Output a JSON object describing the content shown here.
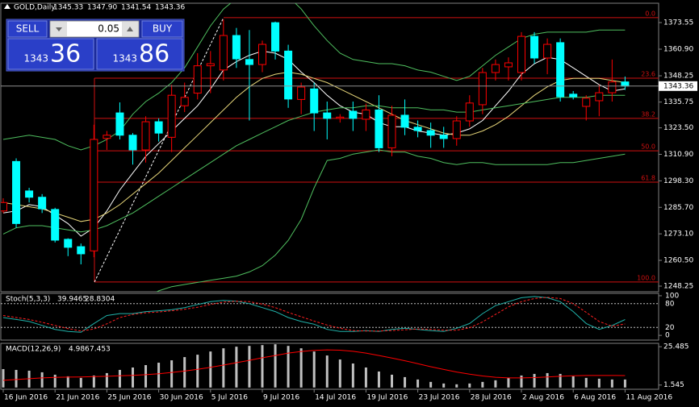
{
  "chart_data": [
    {
      "type": "candlestick",
      "title": "GOLD,Daily",
      "last_labels": [
        "1345.33",
        "1347.90",
        "1341.54",
        "1343.36"
      ],
      "categories": [
        "16 Jun 2016",
        null,
        null,
        null,
        "21 Jun 2016",
        null,
        null,
        null,
        "25 Jun 2016",
        null,
        null,
        null,
        "30 Jun 2016",
        null,
        null,
        null,
        "5 Jul 2016",
        null,
        null,
        null,
        "9 Jul 2016",
        null,
        null,
        null,
        "14 Jul 2016",
        null,
        null,
        null,
        "19 Jul 2016",
        null,
        null,
        null,
        "23 Jul 2016",
        null,
        null,
        null,
        "28 Jul 2016",
        null,
        null,
        null,
        "2 Aug 2016",
        null,
        null,
        null,
        "6 Aug 2016",
        null,
        null,
        null,
        "11 Aug 2016"
      ],
      "open": [
        1284,
        1307.5,
        1293.5,
        1290.5,
        1284.7,
        1270.5,
        1267,
        1265,
        1318.5,
        1330.6,
        1320,
        1313,
        1326.4,
        1319,
        1334,
        1340,
        1353,
        1351,
        1367.4,
        1356,
        1353.6,
        1373.5,
        1360,
        1337,
        1342,
        1330.6,
        1328,
        1331.4,
        1327.6,
        1332,
        1314,
        1329.5,
        1323.8,
        1322.2,
        1320,
        1318.4,
        1326.8,
        1334.5,
        1349.8,
        1352.5,
        1349.8,
        1367,
        1356.7,
        1364,
        1339.5,
        1333.7,
        1336.4,
        1340.2,
        1345.33
      ],
      "high": [
        1290,
        1309,
        1295,
        1292,
        1285.5,
        1271,
        1268.5,
        1325,
        1322,
        1335.6,
        1321,
        1329,
        1328,
        1344,
        1345,
        1359,
        1360,
        1375,
        1371,
        1370,
        1365,
        1374,
        1363,
        1345,
        1345,
        1336,
        1330,
        1336,
        1335,
        1339,
        1334,
        1337,
        1327,
        1326,
        1324,
        1329,
        1339,
        1352,
        1356,
        1357,
        1369,
        1369,
        1366,
        1366,
        1341,
        1339,
        1344,
        1356,
        1347.9
      ],
      "low": [
        1283,
        1276,
        1288,
        1283,
        1269,
        1262.5,
        1258.6,
        1262,
        1313,
        1318,
        1306,
        1307,
        1317,
        1312,
        1331,
        1337,
        1340,
        1346,
        1352,
        1327,
        1350,
        1356,
        1333,
        1330,
        1322,
        1318,
        1326,
        1322,
        1322,
        1312,
        1310,
        1320,
        1319,
        1314,
        1314,
        1315,
        1324,
        1330,
        1346,
        1346,
        1346,
        1354,
        1349,
        1336,
        1337,
        1327,
        1329,
        1336,
        1341.54
      ],
      "close": [
        1288,
        1278,
        1290.5,
        1285,
        1270.1,
        1266.7,
        1263.6,
        1318,
        1320,
        1320,
        1313,
        1326.4,
        1321,
        1339,
        1338,
        1353,
        1354,
        1367.4,
        1356.3,
        1353.6,
        1363.2,
        1360,
        1337.2,
        1342.9,
        1330.6,
        1328,
        1328.6,
        1328,
        1332,
        1314,
        1329.5,
        1323.8,
        1322.2,
        1320,
        1318.4,
        1326.8,
        1335.3,
        1349.8,
        1353.6,
        1354.4,
        1367,
        1356.7,
        1363.2,
        1338.3,
        1338.3,
        1337.6,
        1340.2,
        1345.33,
        1343.36
      ],
      "up_color": "#ff0000",
      "down_color": "#00ffff",
      "overlays": [
        {
          "color": "#ffffff",
          "values": [
            1283,
            1284,
            1287,
            1286,
            1282,
            1278,
            1272,
            1276,
            1284,
            1294,
            1302,
            1310,
            1316,
            1322,
            1328,
            1334,
            1342,
            1351,
            1355,
            1358,
            1360,
            1359,
            1356,
            1350,
            1345,
            1339,
            1334,
            1331,
            1330,
            1326,
            1324,
            1324,
            1322,
            1321,
            1320,
            1321,
            1323,
            1327,
            1334,
            1341,
            1349,
            1354,
            1357,
            1356,
            1352,
            1348,
            1344,
            1341,
            1342
          ]
        },
        {
          "color": "#e8d77a",
          "values": [
            1288,
            1287,
            1286,
            1285,
            1283,
            1281,
            1279,
            1280,
            1283,
            1287,
            1292,
            1297,
            1302,
            1308,
            1314,
            1320,
            1326,
            1332,
            1338,
            1343,
            1347,
            1349,
            1350,
            1349,
            1347,
            1345,
            1342,
            1339,
            1336,
            1333,
            1330,
            1327,
            1325,
            1323,
            1321,
            1320,
            1320,
            1322,
            1325,
            1329,
            1334,
            1339,
            1343,
            1346,
            1347,
            1347,
            1347,
            1346,
            1345
          ]
        },
        {
          "color": "#4fbf5f",
          "values": [
            1318,
            1319,
            1320,
            1319,
            1318,
            1315,
            1313,
            1315,
            1318,
            1322,
            1330,
            1336,
            1340,
            1345,
            1352,
            1362,
            1372,
            1380,
            1385,
            1388,
            1389,
            1389,
            1386,
            1380,
            1372,
            1365,
            1359,
            1356,
            1355,
            1354,
            1354,
            1353,
            1351,
            1350,
            1348,
            1346,
            1348,
            1353,
            1358,
            1362,
            1366,
            1368,
            1369,
            1369,
            1369,
            1369,
            1370,
            1370,
            1370
          ]
        },
        {
          "color": "#4fbf5f",
          "values": [
            1273,
            1276,
            1277,
            1277,
            1276,
            1275,
            1274,
            1275,
            1277,
            1280,
            1283,
            1287,
            1291,
            1295,
            1299,
            1303,
            1307,
            1311,
            1315,
            1318,
            1321,
            1324,
            1327,
            1329,
            1331,
            1332,
            1333,
            1333,
            1334,
            1334,
            1333,
            1333,
            1333,
            1332,
            1332,
            1331,
            1331,
            1332,
            1333,
            1334,
            1335,
            1336,
            1337,
            1338,
            1338,
            1338,
            1339,
            1339,
            1339
          ]
        },
        {
          "color": "#4fbf5f",
          "values": [
            1240,
            1240,
            1238,
            1236,
            1234,
            1232,
            1232,
            1233,
            1234,
            1237,
            1240,
            1243,
            1246,
            1248,
            1249,
            1250,
            1251,
            1252,
            1253,
            1255,
            1258,
            1263,
            1270,
            1280,
            1295,
            1308,
            1309,
            1311,
            1312,
            1313,
            1312,
            1312,
            1310,
            1309,
            1307,
            1306,
            1307,
            1307,
            1306,
            1306,
            1306,
            1306,
            1306,
            1307,
            1307,
            1308,
            1309,
            1310,
            1311
          ]
        }
      ],
      "fib": {
        "labels": [
          "0.0",
          "23.6",
          "38.2",
          "50.0",
          "61.8",
          "100.0"
        ],
        "values": [
          1375.9,
          1347.1,
          1328,
          1312.6,
          1297.7,
          1250.2
        ],
        "color": "#d01010"
      },
      "ylim": [
        1245.57,
        1382.75
      ],
      "yticks": [
        {
          "value": 1373.55,
          "label": "1373.55"
        },
        {
          "value": 1360.9,
          "label": "1360.90"
        },
        {
          "value": 1348.25,
          "label": "1348.25"
        },
        {
          "value": 1335.75,
          "label": "1335.75"
        },
        {
          "value": 1323.5,
          "label": "1323.50"
        },
        {
          "value": 1310.9,
          "label": "1310.90"
        },
        {
          "value": 1298.3,
          "label": "1298.30"
        },
        {
          "value": 1285.7,
          "label": "1285.70"
        },
        {
          "value": 1273.1,
          "label": "1273.10"
        },
        {
          "value": 1260.5,
          "label": "1260.50"
        },
        {
          "value": 1248.25,
          "label": "1248.25"
        }
      ]
    },
    {
      "type": "line",
      "title": "Stoch(5,3,3)",
      "series": [
        {
          "color": "#20b2aa",
          "dashed": false,
          "values": [
            45,
            40,
            35,
            25,
            15,
            10,
            8,
            30,
            50,
            55,
            55,
            60,
            62,
            65,
            70,
            78,
            85,
            88,
            86,
            80,
            70,
            60,
            45,
            35,
            28,
            15,
            10,
            10,
            12,
            10,
            15,
            18,
            15,
            12,
            10,
            18,
            30,
            55,
            75,
            85,
            95,
            98,
            95,
            85,
            60,
            30,
            15,
            25,
            39.9465
          ]
        },
        {
          "color": "#ff2020",
          "dashed": true,
          "values": [
            50,
            45,
            40,
            33,
            25,
            17,
            11,
            16,
            29,
            45,
            53,
            57,
            59,
            62,
            66,
            71,
            78,
            84,
            86,
            85,
            79,
            70,
            58,
            47,
            36,
            26,
            18,
            12,
            11,
            11,
            12,
            14,
            16,
            15,
            13,
            13,
            19,
            34,
            53,
            72,
            85,
            93,
            96,
            93,
            80,
            58,
            35,
            23,
            28.8304
          ]
        }
      ],
      "ylim": [
        -12,
        106
      ],
      "yticks": [
        0,
        20,
        80,
        100
      ]
    },
    {
      "type": "bar",
      "title": "MACD(12,26,9)",
      "series": [
        {
          "color": "#c0c0c0",
          "kind": "bar",
          "values": [
            11.5,
            11,
            10.5,
            9.5,
            8,
            7,
            6,
            7.5,
            9,
            11,
            12.5,
            14,
            15.5,
            17,
            19,
            20.5,
            22.5,
            24.5,
            25.5,
            26,
            26.5,
            27,
            26,
            24.5,
            22.5,
            20,
            17.5,
            15,
            12.5,
            10,
            8,
            6.5,
            5,
            3.5,
            2.5,
            2,
            2.5,
            3.5,
            4.5,
            6,
            7.5,
            8.5,
            9,
            8.5,
            7,
            6,
            5.5,
            5,
            4.986
          ]
        },
        {
          "color": "#ff0000",
          "kind": "line",
          "values": [
            4.5,
            5,
            5.5,
            6,
            6.3,
            6.5,
            6.6,
            6.8,
            7.0,
            7.3,
            7.6,
            8,
            8.6,
            9.4,
            10.3,
            11.4,
            12.6,
            14,
            15.5,
            17,
            18.6,
            20,
            21.5,
            22.5,
            23.2,
            23.5,
            23.3,
            22.6,
            21.5,
            20,
            18.4,
            16.7,
            14.9,
            13,
            11.3,
            9.7,
            8.3,
            7.2,
            6.4,
            6,
            6,
            6.2,
            6.6,
            7,
            7.3,
            7.5,
            7.5,
            7.5,
            7.453
          ]
        }
      ],
      "ylim": [
        -1.1,
        27.6
      ],
      "yticks": [
        25.485,
        1.545
      ]
    }
  ],
  "trade_panel": {
    "sell": "SELL",
    "buy": "BUY",
    "lot": "0.05",
    "sell_big": "1343",
    "sell_pips": "36",
    "buy_big": "1343",
    "buy_pips": "86"
  }
}
